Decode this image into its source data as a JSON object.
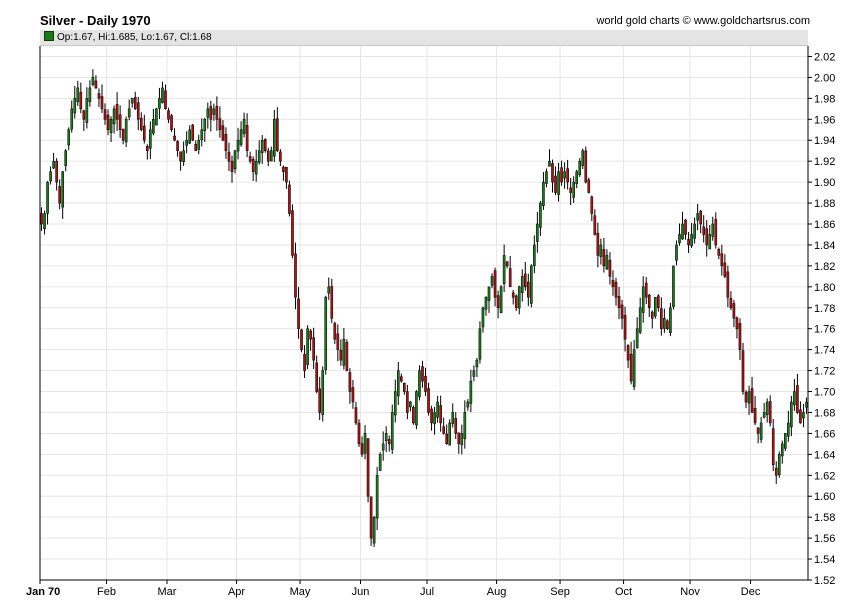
{
  "header": {
    "title": "Silver - Daily 1970",
    "credit": "world gold charts © www.goldchartsrus.com",
    "ohlc_label": "Op:1.67, Hi:1.685, Lo:1.67, Cl:1.68"
  },
  "colors": {
    "up": "#1a7a1a",
    "down": "#b01010",
    "wick": "#000000",
    "grid": "#e6e6e6",
    "axis": "#000000"
  },
  "chart_data": {
    "type": "candlestick",
    "title": "Silver - Daily 1970",
    "ylim": [
      1.52,
      2.03
    ],
    "yticks": [
      1.52,
      1.54,
      1.56,
      1.58,
      1.6,
      1.62,
      1.64,
      1.66,
      1.68,
      1.7,
      1.72,
      1.74,
      1.76,
      1.78,
      1.8,
      1.82,
      1.84,
      1.86,
      1.88,
      1.9,
      1.92,
      1.94,
      1.96,
      1.98,
      2.0,
      2.02
    ],
    "ytick_labels": [
      "1.52",
      "1.54",
      "1.56",
      "1.58",
      "1.60",
      "1.62",
      "1.64",
      "1.66",
      "1.68",
      "1.70",
      "1.72",
      "1.74",
      "1.76",
      "1.78",
      "1.80",
      "1.82",
      "1.84",
      "1.86",
      "1.88",
      "1.90",
      "1.92",
      "1.94",
      "1.96",
      "1.98",
      "2.00",
      "2.02"
    ],
    "month_labels": [
      "Jan 70",
      "Feb",
      "Mar",
      "Apr",
      "May",
      "Jun",
      "Jul",
      "Aug",
      "Sep",
      "Oct",
      "Nov",
      "Dec"
    ],
    "month_start_index": [
      0,
      22,
      42,
      65,
      86,
      106,
      128,
      151,
      172,
      193,
      215,
      235
    ],
    "trading_days": 254,
    "grid": true,
    "close": [
      1.86,
      1.87,
      1.9,
      1.91,
      1.92,
      1.9,
      1.88,
      1.91,
      1.93,
      1.95,
      1.97,
      1.98,
      1.99,
      1.97,
      1.96,
      1.98,
      1.99,
      2.0,
      1.99,
      1.98,
      1.97,
      1.96,
      1.95,
      1.96,
      1.97,
      1.96,
      1.95,
      1.94,
      1.96,
      1.97,
      1.98,
      1.97,
      1.96,
      1.95,
      1.94,
      1.93,
      1.95,
      1.96,
      1.97,
      1.98,
      1.99,
      1.97,
      1.96,
      1.95,
      1.94,
      1.93,
      1.92,
      1.93,
      1.94,
      1.95,
      1.94,
      1.93,
      1.94,
      1.95,
      1.96,
      1.97,
      1.96,
      1.97,
      1.96,
      1.95,
      1.94,
      1.93,
      1.92,
      1.91,
      1.93,
      1.94,
      1.95,
      1.96,
      1.93,
      1.92,
      1.91,
      1.92,
      1.93,
      1.94,
      1.93,
      1.92,
      1.93,
      1.96,
      1.93,
      1.92,
      1.91,
      1.9,
      1.87,
      1.83,
      1.79,
      1.76,
      1.74,
      1.72,
      1.76,
      1.75,
      1.73,
      1.7,
      1.68,
      1.72,
      1.79,
      1.8,
      1.77,
      1.75,
      1.74,
      1.73,
      1.75,
      1.72,
      1.7,
      1.69,
      1.67,
      1.65,
      1.64,
      1.66,
      1.6,
      1.56,
      1.58,
      1.62,
      1.64,
      1.65,
      1.66,
      1.65,
      1.68,
      1.7,
      1.72,
      1.71,
      1.7,
      1.68,
      1.69,
      1.67,
      1.7,
      1.72,
      1.71,
      1.7,
      1.68,
      1.67,
      1.68,
      1.69,
      1.67,
      1.66,
      1.65,
      1.67,
      1.68,
      1.66,
      1.65,
      1.66,
      1.68,
      1.69,
      1.71,
      1.72,
      1.73,
      1.76,
      1.78,
      1.79,
      1.8,
      1.81,
      1.79,
      1.78,
      1.8,
      1.83,
      1.82,
      1.8,
      1.79,
      1.78,
      1.8,
      1.81,
      1.8,
      1.79,
      1.82,
      1.84,
      1.86,
      1.88,
      1.9,
      1.91,
      1.92,
      1.9,
      1.89,
      1.91,
      1.9,
      1.91,
      1.9,
      1.89,
      1.9,
      1.91,
      1.92,
      1.93,
      1.9,
      1.89,
      1.87,
      1.85,
      1.83,
      1.84,
      1.82,
      1.83,
      1.81,
      1.8,
      1.79,
      1.78,
      1.77,
      1.75,
      1.73,
      1.71,
      1.74,
      1.76,
      1.78,
      1.8,
      1.79,
      1.78,
      1.77,
      1.79,
      1.78,
      1.76,
      1.77,
      1.76,
      1.78,
      1.82,
      1.84,
      1.85,
      1.86,
      1.85,
      1.84,
      1.85,
      1.86,
      1.87,
      1.86,
      1.85,
      1.84,
      1.85,
      1.86,
      1.84,
      1.83,
      1.82,
      1.81,
      1.79,
      1.78,
      1.77,
      1.76,
      1.74,
      1.7,
      1.69,
      1.7,
      1.68,
      1.67,
      1.66,
      1.67,
      1.68,
      1.69,
      1.67,
      1.63,
      1.62,
      1.64,
      1.65,
      1.66,
      1.67,
      1.69,
      1.7,
      1.68,
      1.67,
      1.68,
      1.69,
      1.68
    ]
  }
}
